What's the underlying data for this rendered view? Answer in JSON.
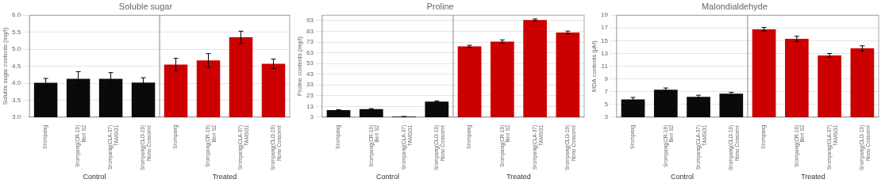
{
  "chart_data": [
    {
      "type": "bar",
      "title": "Soluble sugar",
      "ylabel": "Soluble sugar contents (mg/l)",
      "categories": [
        "Srompang",
        "Srompang(CR-19)\nBeri S2",
        "Srompang(CLA-37)\nTAMSO1",
        "Srompang(CLO-19)\nNono Consomé",
        "Srompang",
        "Srompang(CR-19)\nBeri S2",
        "Srompang(CLA-37)\nTAMSO1",
        "Srompang(CLO-19)\nNono Consomé"
      ],
      "series": [
        {
          "name": "Control",
          "color": "#0a0a0a",
          "values": [
            4.01,
            4.13,
            4.13,
            4.02,
            null,
            null,
            null,
            null
          ],
          "errors": [
            0.13,
            0.21,
            0.18,
            0.14,
            null,
            null,
            null,
            null
          ]
        },
        {
          "name": "Treated",
          "color": "#cc0000",
          "values": [
            null,
            null,
            null,
            null,
            4.55,
            4.67,
            5.35,
            4.57
          ],
          "errors": [
            null,
            null,
            null,
            null,
            0.18,
            0.2,
            0.18,
            0.14
          ]
        }
      ],
      "ylim": [
        3.0,
        6.0
      ],
      "yticks": [
        {
          "value": 3.0,
          "label": "3.0"
        },
        3.5,
        {
          "value": 4.0,
          "label": "4.0"
        },
        4.5,
        {
          "value": 5.0,
          "label": "5.0"
        },
        5.5,
        {
          "value": 6.0,
          "label": "6.0"
        }
      ],
      "grid": true
    },
    {
      "type": "bar",
      "title": "Proline",
      "ylabel": "Proline contents (mg/l)",
      "categories": [
        "Srompang",
        "Srompang(CR-19)\nBeri S2",
        "Srompang(CLA-37)\nTAMSO1",
        "Srompang(CLO-19)\nNono Consomé",
        "Srompang",
        "Srompang(CR-19)\nBeri S2",
        "Srompang(CLA-37)\nTAMSO1",
        "Srompang(CLO-19)\nNono Consomé"
      ],
      "series": [
        {
          "name": "Control",
          "color": "#0a0a0a",
          "values": [
            9.5,
            10.5,
            3.5,
            17.5,
            null,
            null,
            null,
            null
          ],
          "errors": [
            0.4,
            0.5,
            0.2,
            0.7,
            null,
            null,
            null,
            null
          ]
        },
        {
          "name": "Treated",
          "color": "#cc0000",
          "values": [
            null,
            null,
            null,
            null,
            69.0,
            73.5,
            93.5,
            82.0
          ],
          "errors": [
            null,
            null,
            null,
            null,
            1.0,
            1.5,
            1.0,
            1.2
          ]
        }
      ],
      "ylim": [
        3.0,
        98.0
      ],
      "yticks": [
        3,
        13,
        23,
        33,
        43,
        53,
        63,
        73,
        83,
        93
      ],
      "grid": true
    },
    {
      "type": "bar",
      "title": "Malondialdehyde",
      "ylabel": "MDA contents (μM)",
      "categories": [
        "Srompang",
        "Srompang(CR-19)\nBeri S2",
        "Srompang(CLA-37)\nTAMSO1",
        "Srompang(CLO-19)\nNono Consomé",
        "Srompang",
        "Srompang(CR-19)\nBeri S2",
        "Srompang(CLA-37)\nTAMSO1",
        "Srompang(CLO-19)\nNono Consomé"
      ],
      "series": [
        {
          "name": "Control",
          "color": "#0a0a0a",
          "values": [
            5.8,
            7.3,
            6.2,
            6.7,
            null,
            null,
            null,
            null
          ],
          "errors": [
            0.3,
            0.28,
            0.25,
            0.2,
            null,
            null,
            null,
            null
          ]
        },
        {
          "name": "Treated",
          "color": "#cc0000",
          "values": [
            null,
            null,
            null,
            null,
            16.8,
            15.3,
            12.7,
            13.8
          ],
          "errors": [
            null,
            null,
            null,
            null,
            0.28,
            0.4,
            0.3,
            0.4
          ]
        }
      ],
      "ylim": [
        3.0,
        19.0
      ],
      "yticks": [
        3,
        5,
        7,
        9,
        11,
        13,
        15,
        17,
        19
      ],
      "grid": true
    }
  ]
}
